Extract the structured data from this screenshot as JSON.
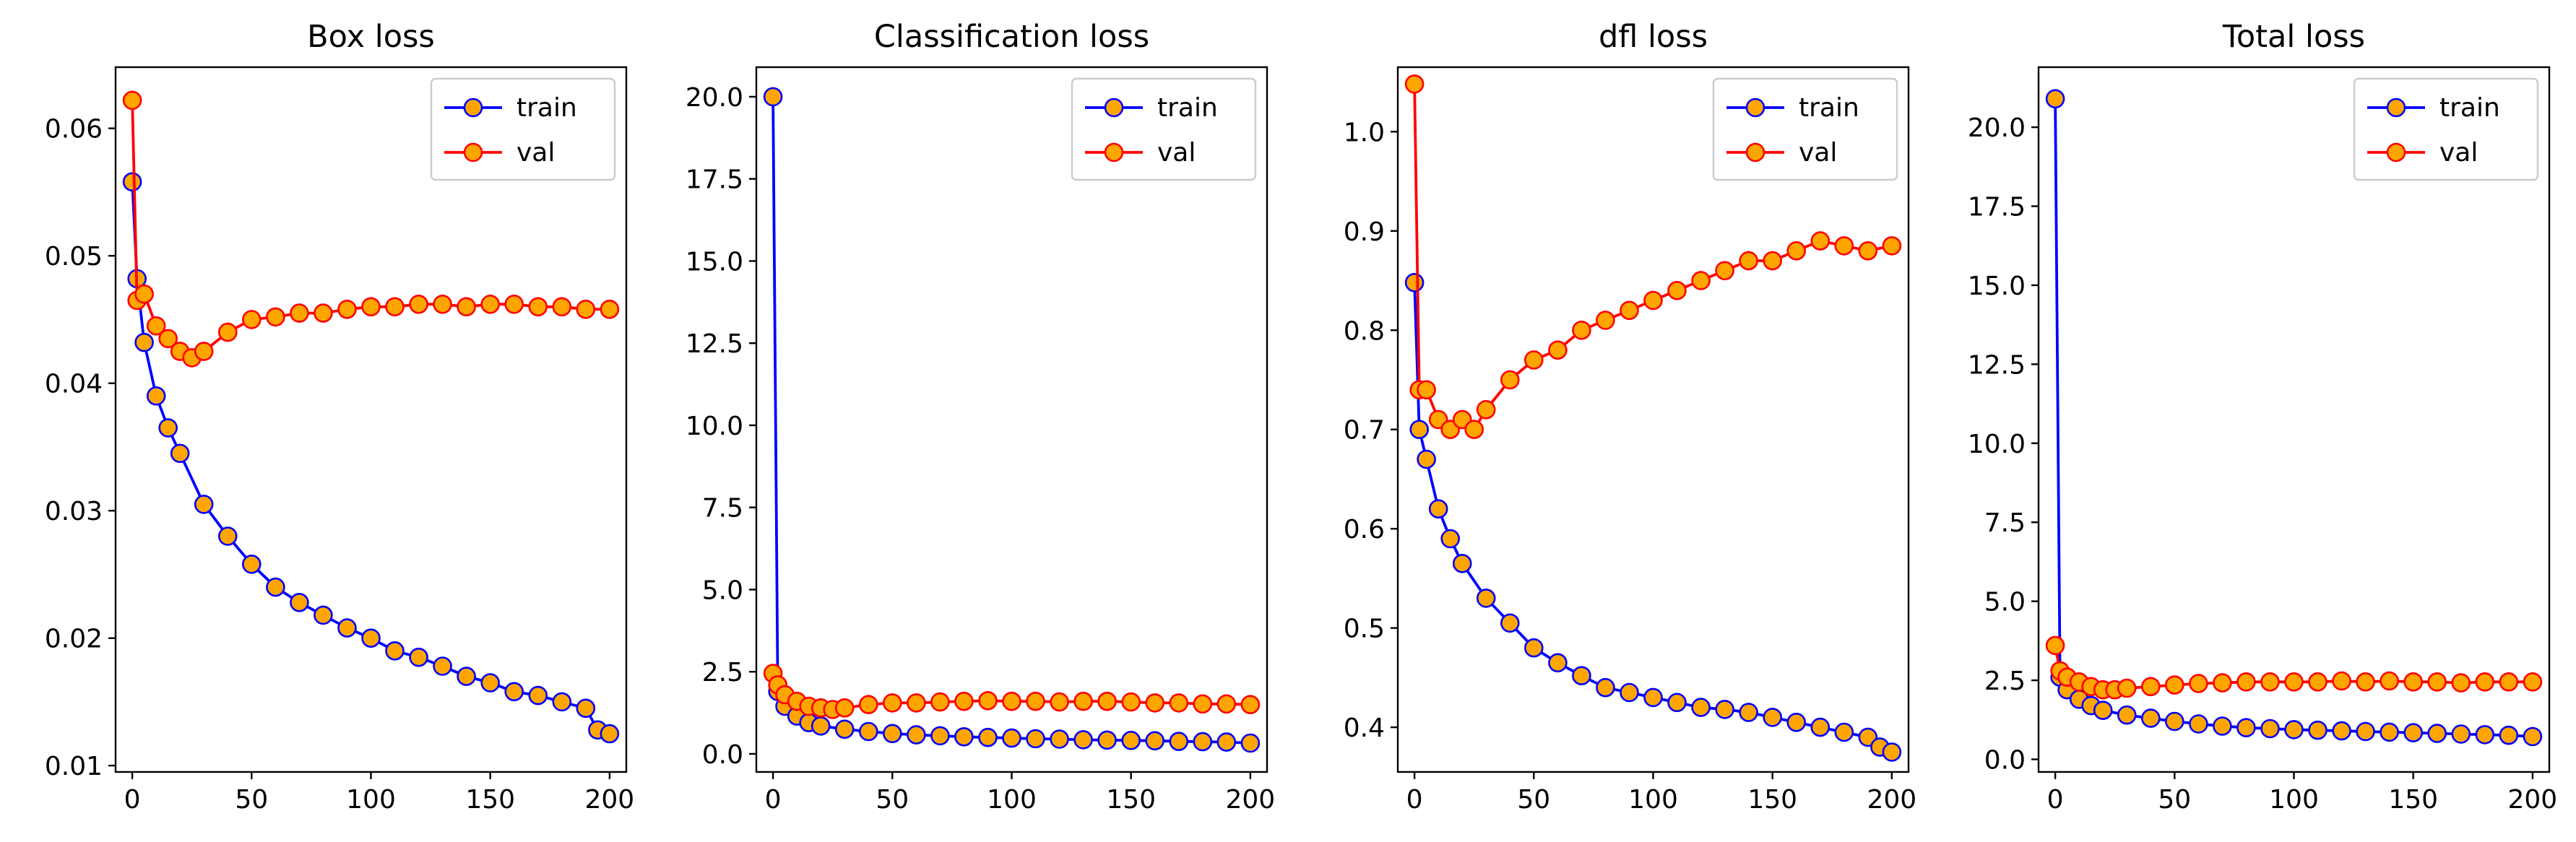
{
  "colors": {
    "train": "#0000ff",
    "val": "#ff0000",
    "marker_fill": "#ffa500",
    "axes": "#000000"
  },
  "chart_data": [
    {
      "type": "line",
      "title": "Box loss",
      "xlim": [
        -7,
        207
      ],
      "ylim": [
        0.0095,
        0.0648
      ],
      "xticks": [
        0,
        50,
        100,
        150,
        200
      ],
      "yticks": [
        0.01,
        0.02,
        0.03,
        0.04,
        0.05,
        0.06
      ],
      "ytick_labels": [
        "0.01",
        "0.02",
        "0.03",
        "0.04",
        "0.05",
        "0.06"
      ],
      "legend": {
        "position": "upper-right",
        "entries": [
          "train",
          "val"
        ]
      },
      "series": [
        {
          "name": "train",
          "color": "#0000ff",
          "x": [
            0,
            2,
            5,
            10,
            15,
            20,
            30,
            40,
            50,
            60,
            70,
            80,
            90,
            100,
            110,
            120,
            130,
            140,
            150,
            160,
            170,
            180,
            190,
            195,
            200
          ],
          "y": [
            0.0558,
            0.0482,
            0.0432,
            0.039,
            0.0365,
            0.0345,
            0.0305,
            0.028,
            0.0258,
            0.024,
            0.0228,
            0.0218,
            0.0208,
            0.02,
            0.019,
            0.0185,
            0.0178,
            0.017,
            0.0165,
            0.0158,
            0.0155,
            0.015,
            0.0145,
            0.0128,
            0.0125
          ]
        },
        {
          "name": "val",
          "color": "#ff0000",
          "x": [
            0,
            2,
            5,
            10,
            15,
            20,
            25,
            30,
            40,
            50,
            60,
            70,
            80,
            90,
            100,
            110,
            120,
            130,
            140,
            150,
            160,
            170,
            180,
            190,
            200
          ],
          "y": [
            0.0622,
            0.0465,
            0.047,
            0.0445,
            0.0435,
            0.0425,
            0.042,
            0.0425,
            0.044,
            0.045,
            0.0452,
            0.0455,
            0.0455,
            0.0458,
            0.046,
            0.046,
            0.0462,
            0.0462,
            0.046,
            0.0462,
            0.0462,
            0.046,
            0.046,
            0.0458,
            0.0458
          ]
        }
      ]
    },
    {
      "type": "line",
      "title": "Classification loss",
      "xlim": [
        -7,
        207
      ],
      "ylim": [
        -0.55,
        20.9
      ],
      "xticks": [
        0,
        50,
        100,
        150,
        200
      ],
      "yticks": [
        0,
        2.5,
        5,
        7.5,
        10,
        12.5,
        15,
        17.5,
        20
      ],
      "ytick_labels": [
        "0.0",
        "2.5",
        "5.0",
        "7.5",
        "10.0",
        "12.5",
        "15.0",
        "17.5",
        "20.0"
      ],
      "legend": {
        "position": "upper-right",
        "entries": [
          "train",
          "val"
        ]
      },
      "series": [
        {
          "name": "train",
          "color": "#0000ff",
          "x": [
            0,
            2,
            5,
            10,
            15,
            20,
            30,
            40,
            50,
            60,
            70,
            80,
            90,
            100,
            110,
            120,
            130,
            140,
            150,
            160,
            170,
            180,
            190,
            200
          ],
          "y": [
            20.0,
            1.9,
            1.45,
            1.15,
            0.95,
            0.85,
            0.75,
            0.68,
            0.62,
            0.58,
            0.55,
            0.52,
            0.5,
            0.48,
            0.46,
            0.45,
            0.43,
            0.42,
            0.41,
            0.4,
            0.38,
            0.37,
            0.36,
            0.33
          ]
        },
        {
          "name": "val",
          "color": "#ff0000",
          "x": [
            0,
            2,
            5,
            10,
            15,
            20,
            25,
            30,
            40,
            50,
            60,
            70,
            80,
            90,
            100,
            110,
            120,
            130,
            140,
            150,
            160,
            170,
            180,
            190,
            200
          ],
          "y": [
            2.45,
            2.1,
            1.8,
            1.6,
            1.45,
            1.4,
            1.35,
            1.4,
            1.5,
            1.55,
            1.55,
            1.58,
            1.6,
            1.62,
            1.6,
            1.6,
            1.58,
            1.6,
            1.6,
            1.58,
            1.55,
            1.55,
            1.52,
            1.52,
            1.5
          ]
        }
      ]
    },
    {
      "type": "line",
      "title": "dfl loss",
      "xlim": [
        -7,
        207
      ],
      "ylim": [
        0.355,
        1.065
      ],
      "xticks": [
        0,
        50,
        100,
        150,
        200
      ],
      "yticks": [
        0.4,
        0.5,
        0.6,
        0.7,
        0.8,
        0.9,
        1.0
      ],
      "ytick_labels": [
        "0.4",
        "0.5",
        "0.6",
        "0.7",
        "0.8",
        "0.9",
        "1.0"
      ],
      "legend": {
        "position": "upper-right",
        "entries": [
          "train",
          "val"
        ]
      },
      "series": [
        {
          "name": "train",
          "color": "#0000ff",
          "x": [
            0,
            2,
            5,
            10,
            15,
            20,
            30,
            40,
            50,
            60,
            70,
            80,
            90,
            100,
            110,
            120,
            130,
            140,
            150,
            160,
            170,
            180,
            190,
            195,
            200
          ],
          "y": [
            0.848,
            0.7,
            0.67,
            0.62,
            0.59,
            0.565,
            0.53,
            0.505,
            0.48,
            0.465,
            0.452,
            0.44,
            0.435,
            0.43,
            0.425,
            0.42,
            0.418,
            0.415,
            0.41,
            0.405,
            0.4,
            0.395,
            0.39,
            0.38,
            0.375
          ]
        },
        {
          "name": "val",
          "color": "#ff0000",
          "x": [
            0,
            2,
            5,
            10,
            15,
            20,
            25,
            30,
            40,
            50,
            60,
            70,
            80,
            90,
            100,
            110,
            120,
            130,
            140,
            150,
            160,
            170,
            180,
            190,
            200
          ],
          "y": [
            1.048,
            0.74,
            0.74,
            0.71,
            0.7,
            0.71,
            0.7,
            0.72,
            0.75,
            0.77,
            0.78,
            0.8,
            0.81,
            0.82,
            0.83,
            0.84,
            0.85,
            0.86,
            0.87,
            0.87,
            0.88,
            0.89,
            0.885,
            0.88,
            0.885
          ]
        }
      ]
    },
    {
      "type": "line",
      "title": "Total loss",
      "xlim": [
        -7,
        207
      ],
      "ylim": [
        -0.4,
        21.9
      ],
      "xticks": [
        0,
        50,
        100,
        150,
        200
      ],
      "yticks": [
        0,
        2.5,
        5,
        7.5,
        10,
        12.5,
        15,
        17.5,
        20
      ],
      "ytick_labels": [
        "0.0",
        "2.5",
        "5.0",
        "7.5",
        "10.0",
        "12.5",
        "15.0",
        "17.5",
        "20.0"
      ],
      "legend": {
        "position": "upper-right",
        "entries": [
          "train",
          "val"
        ]
      },
      "series": [
        {
          "name": "train",
          "color": "#0000ff",
          "x": [
            0,
            2,
            5,
            10,
            15,
            20,
            30,
            40,
            50,
            60,
            70,
            80,
            90,
            100,
            110,
            120,
            130,
            140,
            150,
            160,
            170,
            180,
            190,
            200
          ],
          "y": [
            20.9,
            2.6,
            2.2,
            1.9,
            1.7,
            1.55,
            1.4,
            1.3,
            1.2,
            1.12,
            1.05,
            1.0,
            0.97,
            0.94,
            0.92,
            0.9,
            0.88,
            0.86,
            0.84,
            0.82,
            0.8,
            0.78,
            0.76,
            0.72
          ]
        },
        {
          "name": "val",
          "color": "#ff0000",
          "x": [
            0,
            2,
            5,
            10,
            15,
            20,
            25,
            30,
            40,
            50,
            60,
            70,
            80,
            90,
            100,
            110,
            120,
            130,
            140,
            150,
            160,
            170,
            180,
            190,
            200
          ],
          "y": [
            3.6,
            2.8,
            2.6,
            2.45,
            2.3,
            2.2,
            2.2,
            2.25,
            2.3,
            2.35,
            2.4,
            2.42,
            2.45,
            2.45,
            2.45,
            2.45,
            2.48,
            2.45,
            2.48,
            2.45,
            2.45,
            2.42,
            2.45,
            2.45,
            2.45
          ]
        }
      ]
    }
  ]
}
